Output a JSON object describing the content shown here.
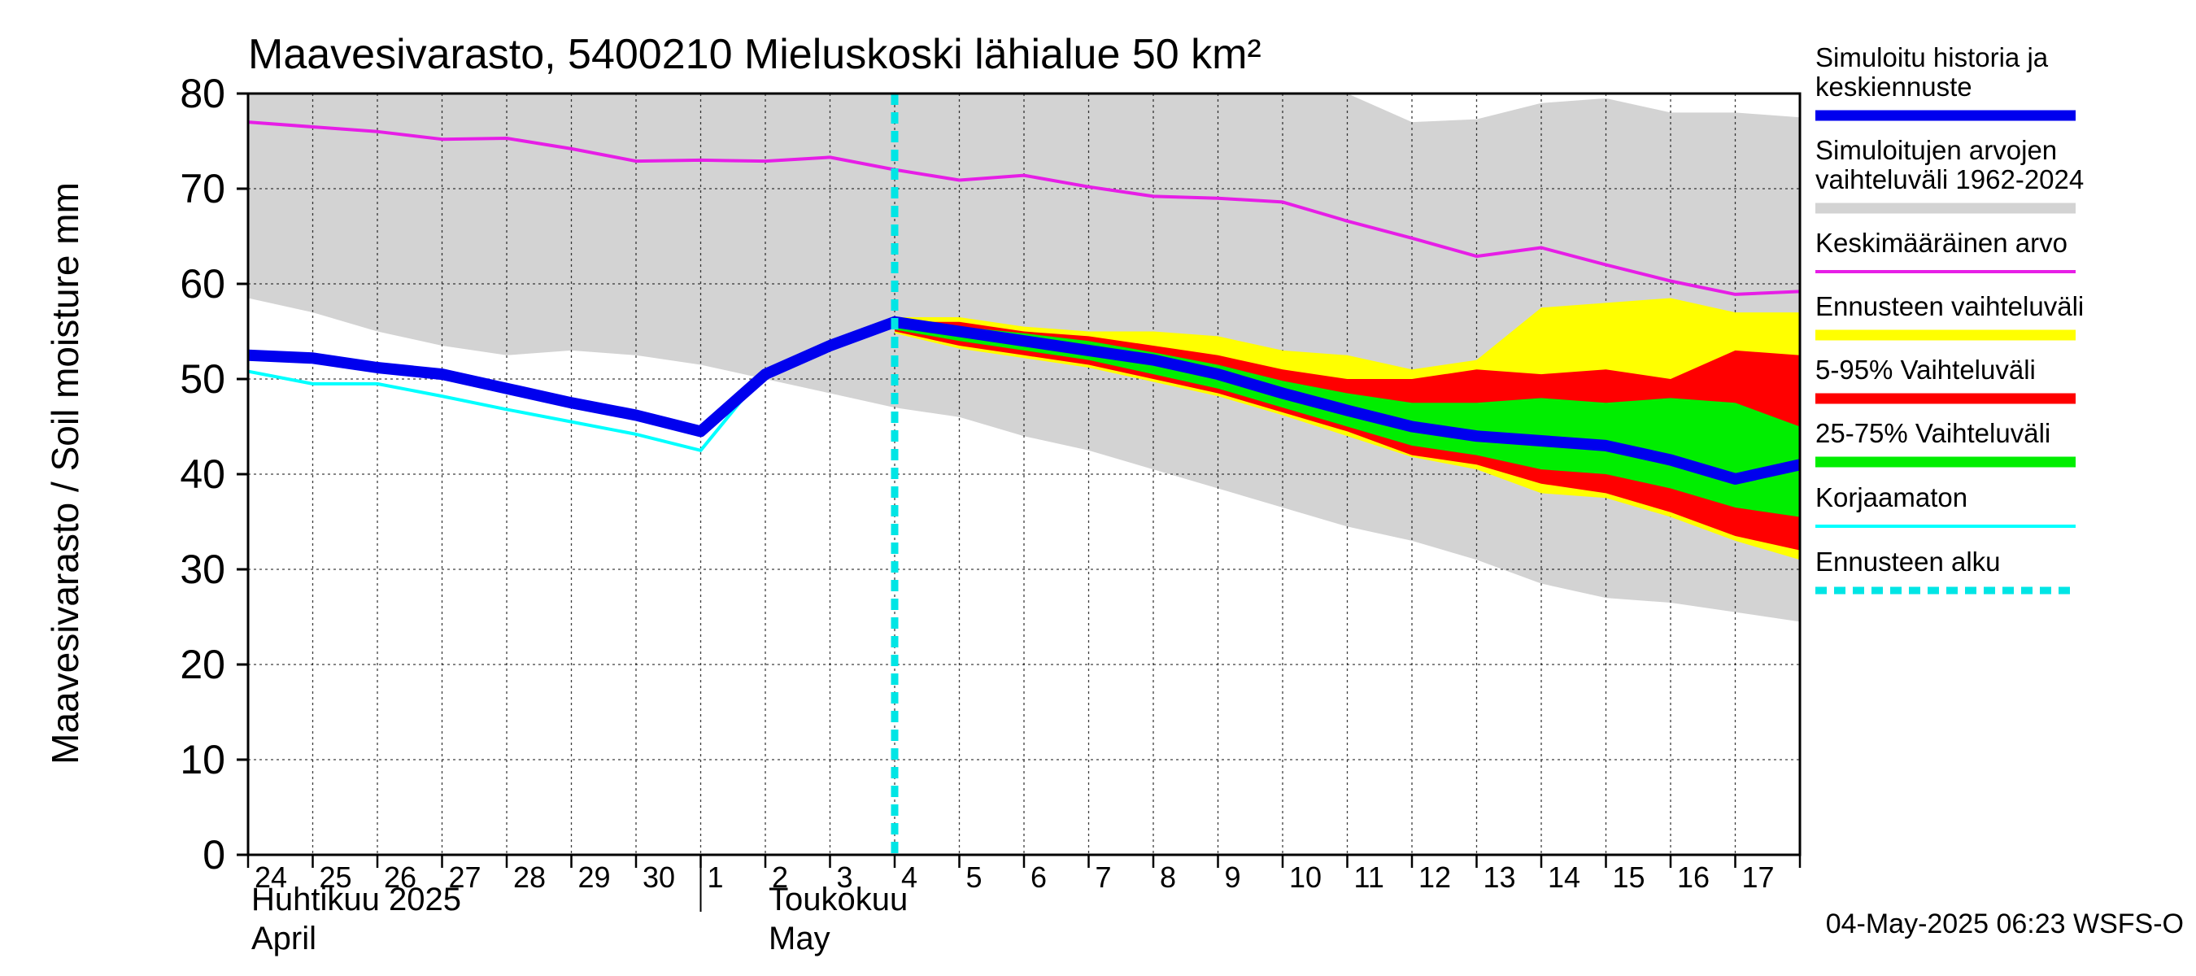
{
  "chart_data": {
    "type": "area",
    "title": "Maavesivarasto, 5400210 Mieluskoski lähialue 50 km²",
    "ylabel": "Maavesivarasto / Soil moisture   mm",
    "ylim": [
      0,
      80
    ],
    "yticks": [
      0,
      10,
      20,
      30,
      40,
      50,
      60,
      70,
      80
    ],
    "xlim": [
      0,
      24
    ],
    "day_labels": [
      "24",
      "25",
      "26",
      "27",
      "28",
      "29",
      "30",
      "1",
      "2",
      "3",
      "4",
      "5",
      "6",
      "7",
      "8",
      "9",
      "10",
      "11",
      "12",
      "13",
      "14",
      "15",
      "16",
      "17"
    ],
    "month_labels": [
      {
        "line1": "Huhtikuu  2025",
        "line2": "April",
        "day": 0
      },
      {
        "line1": "Toukokuu",
        "line2": "May",
        "day": 8
      }
    ],
    "month_divider_day": 7,
    "forecast_start_day": 10,
    "range_1962_2024": {
      "x": [
        0,
        1,
        2,
        3,
        4,
        5,
        6,
        7,
        8,
        9,
        10,
        11,
        12,
        13,
        14,
        15,
        16,
        17,
        18,
        19,
        20,
        21,
        22,
        23,
        24
      ],
      "upper": [
        80,
        80,
        80,
        80,
        80,
        80,
        80,
        80,
        80,
        80,
        80,
        80,
        80,
        80,
        80,
        80,
        80,
        80,
        77,
        77.3,
        79,
        79.5,
        78,
        78,
        77.5
      ],
      "lower": [
        58.5,
        57,
        55,
        53.5,
        52.5,
        53,
        52.5,
        51.5,
        50,
        48.5,
        47,
        46,
        44,
        42.5,
        40.5,
        38.5,
        36.5,
        34.5,
        33,
        31,
        28.5,
        27,
        26.5,
        25.5,
        24.5
      ]
    },
    "mean": {
      "x": [
        0,
        1,
        2,
        3,
        4,
        5,
        6,
        7,
        8,
        9,
        10,
        11,
        12,
        13,
        14,
        15,
        16,
        17,
        18,
        19,
        20,
        21,
        22,
        23,
        24
      ],
      "values": [
        77,
        76.5,
        76,
        75.2,
        75.3,
        74.2,
        72.9,
        73,
        72.9,
        73.3,
        72,
        70.9,
        71.4,
        70.2,
        69.2,
        69,
        68.6,
        66.6,
        64.8,
        62.9,
        63.8,
        62,
        60.3,
        58.9,
        59.2
      ]
    },
    "forecast_x": [
      10,
      11,
      12,
      13,
      14,
      15,
      16,
      17,
      18,
      19,
      20,
      21,
      22,
      23,
      24
    ],
    "total_range_upper": [
      56.5,
      56.5,
      55.5,
      55,
      55,
      54.5,
      53,
      52.5,
      51,
      52,
      57.5,
      58,
      58.5,
      57,
      57
    ],
    "p95": [
      56,
      56,
      55,
      54.5,
      53.5,
      52.5,
      51,
      50,
      50,
      51,
      50.5,
      51,
      50,
      53,
      52.5
    ],
    "p75": [
      55.8,
      55.5,
      54.8,
      54,
      52.8,
      51.5,
      49.8,
      48.5,
      47.5,
      47.5,
      48,
      47.5,
      48,
      47.5,
      45
    ],
    "p25": [
      55.2,
      54,
      53,
      52,
      50.5,
      49,
      47,
      45,
      43,
      42,
      40.5,
      40,
      38.5,
      36.5,
      35.5
    ],
    "p5": [
      55,
      53.5,
      52.5,
      51.5,
      50,
      48.5,
      46.5,
      44.5,
      42,
      41,
      39,
      38,
      36,
      33.5,
      32
    ],
    "total_range_lower": [
      54.8,
      53.2,
      52.2,
      51.2,
      49.7,
      48.2,
      46.2,
      44,
      41.8,
      40.5,
      38,
      37.5,
      35.5,
      33,
      31
    ],
    "simulated_history_and_median": {
      "x": [
        0,
        1,
        2,
        3,
        4,
        5,
        6,
        7,
        8,
        9,
        10,
        11,
        12,
        13,
        14,
        15,
        16,
        17,
        18,
        19,
        20,
        21,
        22,
        23,
        24
      ],
      "values": [
        52.5,
        52.2,
        51.2,
        50.5,
        49,
        47.5,
        46.2,
        44.5,
        50.5,
        53.5,
        56,
        55,
        54,
        53,
        52,
        50.5,
        48.5,
        46.7,
        45,
        44,
        43.5,
        43,
        41.5,
        39.5,
        41
      ]
    },
    "uncorrected": {
      "x": [
        0,
        1,
        2,
        3,
        4,
        5,
        6,
        7,
        8,
        9,
        10
      ],
      "values": [
        50.8,
        49.5,
        49.5,
        48.2,
        46.8,
        45.5,
        44.2,
        42.5,
        50.8,
        53.5,
        56
      ]
    },
    "colors": {
      "history_range": "#d3d3d3",
      "mean": "#e61ee6",
      "forecast_range": "#ffff00",
      "p5_95": "#ff0000",
      "p25_75": "#00ee00",
      "median": "#0000ee",
      "uncorrected": "#00ffff",
      "forecast_start": "#00e5e5"
    },
    "legend": [
      {
        "label": "Simuloitu historia ja keskiennuste",
        "color": "#0000ee",
        "style": "thick"
      },
      {
        "label": "Simuloitujen arvojen vaihteluväli 1962-2024",
        "color": "#d3d3d3",
        "style": "thick"
      },
      {
        "label": "Keskimääräinen arvo",
        "color": "#e61ee6",
        "style": "line"
      },
      {
        "label": "Ennusteen vaihteluväli",
        "color": "#ffff00",
        "style": "thick"
      },
      {
        "label": "5-95% Vaihteluväli",
        "color": "#ff0000",
        "style": "thick"
      },
      {
        "label": "25-75% Vaihteluväli",
        "color": "#00ee00",
        "style": "thick"
      },
      {
        "label": "Korjaamaton",
        "color": "#00ffff",
        "style": "line"
      },
      {
        "label": "Ennusteen alku",
        "color": "#00e5e5",
        "style": "dashed"
      }
    ],
    "timestamp": "04-May-2025 06:23 WSFS-O"
  }
}
